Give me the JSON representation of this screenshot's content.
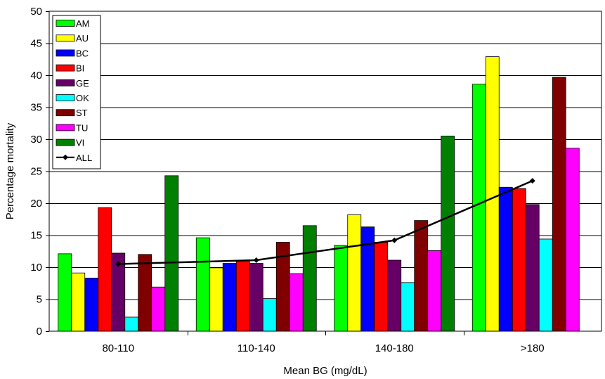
{
  "chart_data": {
    "type": "bar",
    "categories": [
      "80-110",
      "110-140",
      "140-180",
      ">180"
    ],
    "xlabel": "Mean BG (mg/dL)",
    "ylabel": "Percentage mortality",
    "ylim": [
      0,
      50
    ],
    "yticks": [
      0,
      5,
      10,
      15,
      20,
      25,
      30,
      35,
      40,
      45,
      50
    ],
    "grid": true,
    "legend_position": "top-left",
    "series": [
      {
        "name": "AM",
        "color": "#00ff00",
        "values": [
          12.1,
          14.6,
          13.4,
          38.6
        ]
      },
      {
        "name": "AU",
        "color": "#ffff00",
        "values": [
          9.1,
          9.9,
          18.2,
          42.9
        ]
      },
      {
        "name": "BC",
        "color": "#0000ff",
        "values": [
          8.3,
          10.6,
          16.3,
          22.5
        ]
      },
      {
        "name": "BI",
        "color": "#ff0000",
        "values": [
          19.3,
          11.0,
          13.9,
          22.3
        ]
      },
      {
        "name": "GE",
        "color": "#660066",
        "values": [
          12.2,
          10.6,
          11.1,
          19.8
        ]
      },
      {
        "name": "OK",
        "color": "#00ffff",
        "values": [
          2.2,
          5.1,
          7.6,
          14.4
        ]
      },
      {
        "name": "ST",
        "color": "#800000",
        "values": [
          12.0,
          13.9,
          17.3,
          39.7
        ]
      },
      {
        "name": "TU",
        "color": "#ff00ff",
        "values": [
          6.9,
          9.0,
          12.6,
          28.6
        ]
      },
      {
        "name": "VI",
        "color": "#008000",
        "values": [
          24.3,
          16.5,
          30.5,
          null
        ]
      }
    ],
    "line_series": {
      "name": "ALL",
      "color": "#000000",
      "values": [
        10.5,
        11.1,
        14.2,
        23.5
      ]
    }
  }
}
